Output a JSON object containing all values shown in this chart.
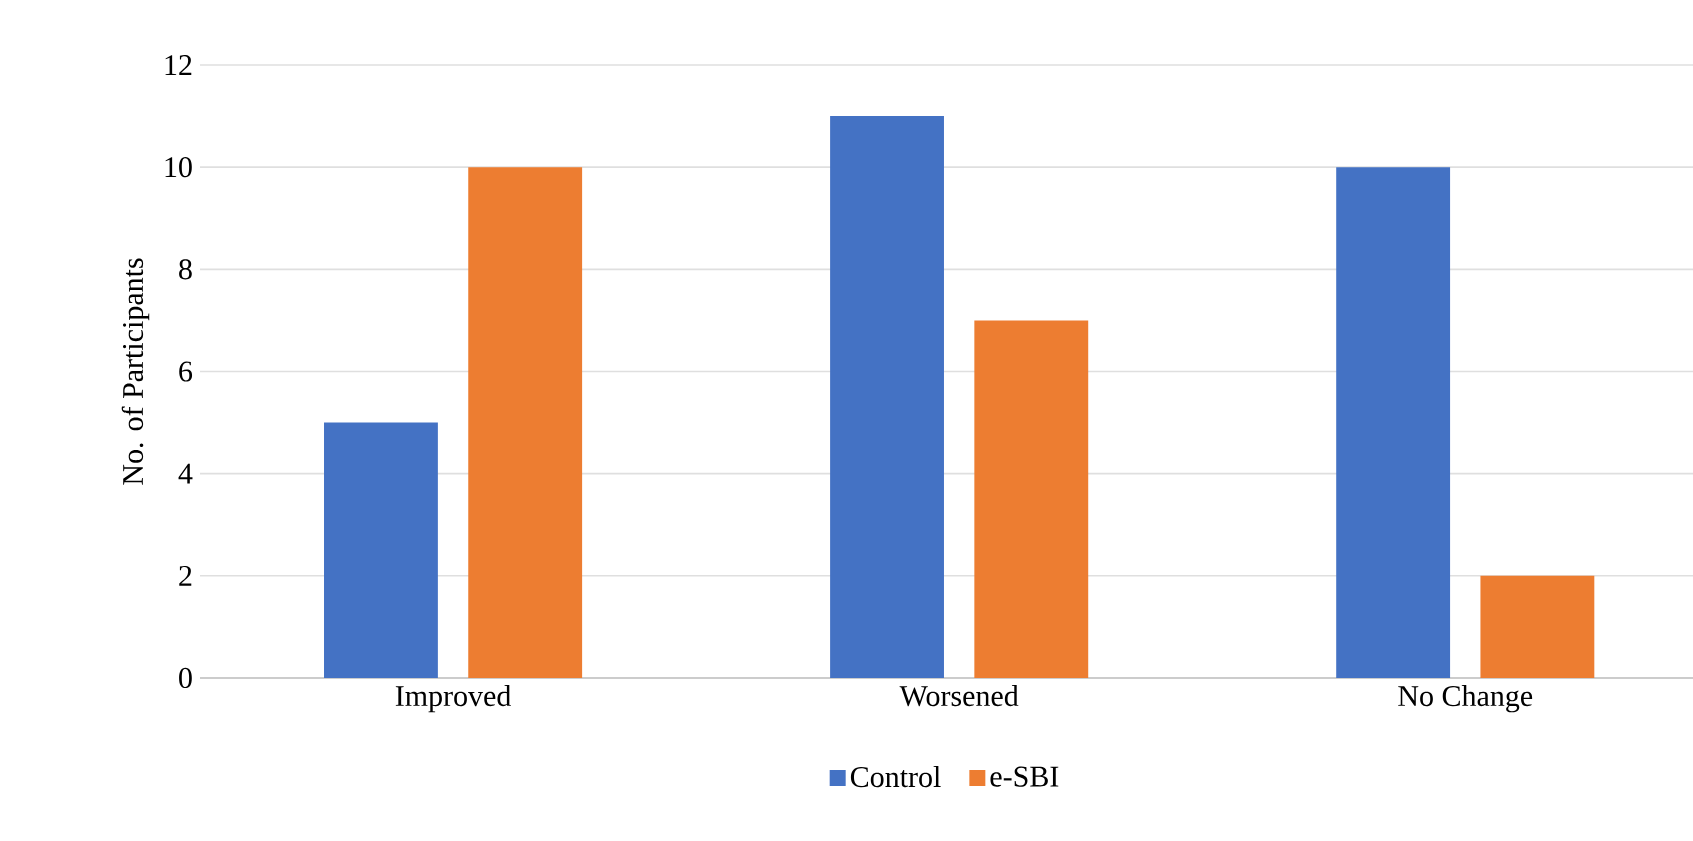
{
  "chart_data": {
    "type": "bar",
    "ylabel": "No. of Participants",
    "categories": [
      "Improved",
      "Worsened",
      "No Change"
    ],
    "series": [
      {
        "name": "Control",
        "color": "#4472c4",
        "values": [
          5,
          11,
          10
        ]
      },
      {
        "name": "e-SBI",
        "color": "#ed7d31",
        "values": [
          10,
          7,
          2
        ]
      }
    ],
    "ylim": [
      0,
      12
    ],
    "yticks": [
      0,
      2,
      4,
      6,
      8,
      10,
      12
    ],
    "grid": "y",
    "legend": "bottom"
  }
}
